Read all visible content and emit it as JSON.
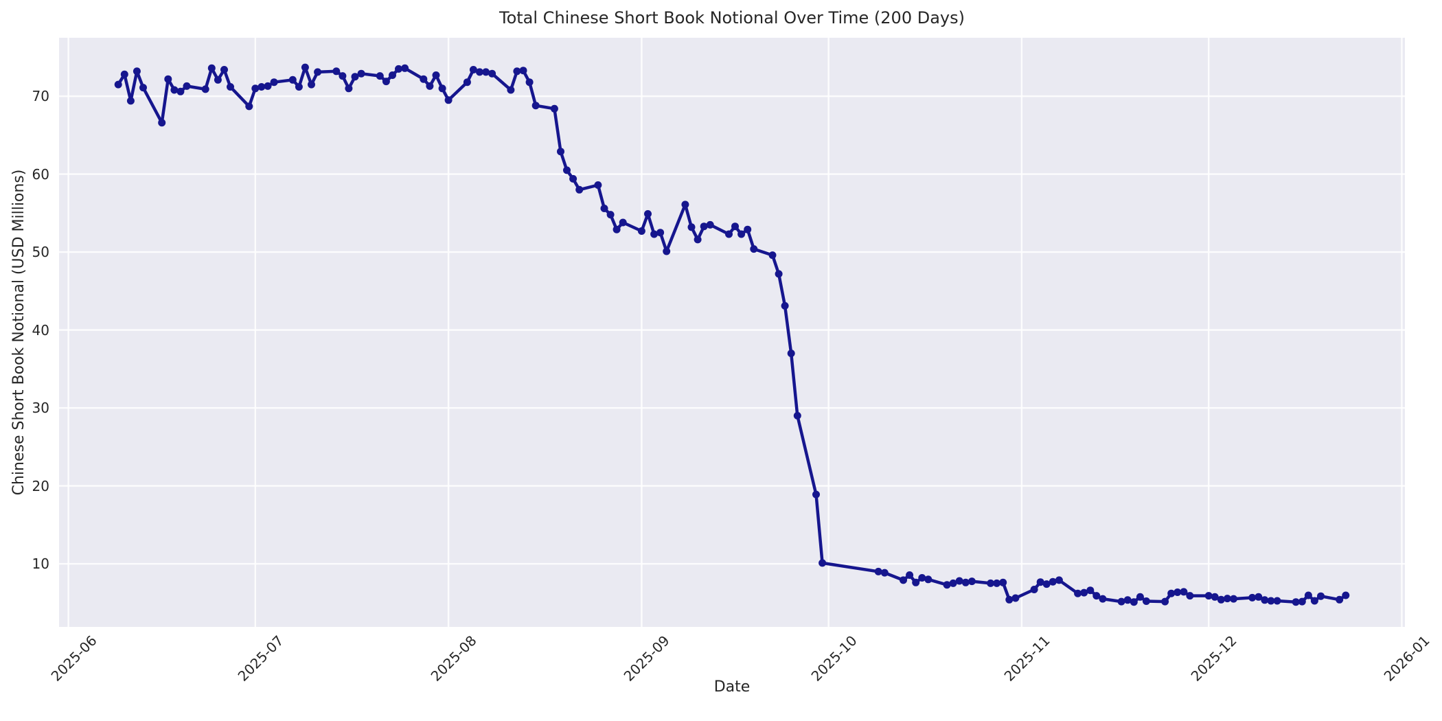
{
  "figure": {
    "background": "#ffffff"
  },
  "chart_data": {
    "type": "line",
    "title": "Total Chinese Short Book Notional Over Time (200 Days)",
    "xlabel": "Date",
    "ylabel": "Chinese Short Book Notional (USD Millions)",
    "grid": true,
    "legend": false,
    "plot_bg": "#eaeaf2",
    "grid_color": "#ffffff",
    "line_color": "#16168e",
    "marker": "circle",
    "xlim": [
      "2025-05-30T12:00:00Z",
      "2026-01-01T12:00:00Z"
    ],
    "ylim": [
      1.9,
      77.5
    ],
    "yticks": [
      10,
      20,
      30,
      40,
      50,
      60,
      70
    ],
    "xticks": [
      {
        "date": "2025-06-01",
        "label": "2025-06"
      },
      {
        "date": "2025-07-01",
        "label": "2025-07"
      },
      {
        "date": "2025-08-01",
        "label": "2025-08"
      },
      {
        "date": "2025-09-01",
        "label": "2025-09"
      },
      {
        "date": "2025-10-01",
        "label": "2025-10"
      },
      {
        "date": "2025-11-01",
        "label": "2025-11"
      },
      {
        "date": "2025-12-01",
        "label": "2025-12"
      },
      {
        "date": "2026-01-01",
        "label": "2026-01"
      }
    ],
    "x": [
      "2025-06-09",
      "2025-06-10",
      "2025-06-11",
      "2025-06-12",
      "2025-06-13",
      "2025-06-16",
      "2025-06-17",
      "2025-06-18",
      "2025-06-19",
      "2025-06-20",
      "2025-06-23",
      "2025-06-24",
      "2025-06-25",
      "2025-06-26",
      "2025-06-27",
      "2025-06-30",
      "2025-07-01",
      "2025-07-02",
      "2025-07-03",
      "2025-07-04",
      "2025-07-07",
      "2025-07-08",
      "2025-07-09",
      "2025-07-10",
      "2025-07-11",
      "2025-07-14",
      "2025-07-15",
      "2025-07-16",
      "2025-07-17",
      "2025-07-18",
      "2025-07-21",
      "2025-07-22",
      "2025-07-23",
      "2025-07-24",
      "2025-07-25",
      "2025-07-28",
      "2025-07-29",
      "2025-07-30",
      "2025-07-31",
      "2025-08-01",
      "2025-08-04",
      "2025-08-05",
      "2025-08-06",
      "2025-08-07",
      "2025-08-08",
      "2025-08-11",
      "2025-08-12",
      "2025-08-13",
      "2025-08-14",
      "2025-08-15",
      "2025-08-18",
      "2025-08-19",
      "2025-08-20",
      "2025-08-21",
      "2025-08-22",
      "2025-08-25",
      "2025-08-26",
      "2025-08-27",
      "2025-08-28",
      "2025-08-29",
      "2025-09-01",
      "2025-09-02",
      "2025-09-03",
      "2025-09-04",
      "2025-09-05",
      "2025-09-08",
      "2025-09-09",
      "2025-09-10",
      "2025-09-11",
      "2025-09-12",
      "2025-09-15",
      "2025-09-16",
      "2025-09-17",
      "2025-09-18",
      "2025-09-19",
      "2025-09-22",
      "2025-09-23",
      "2025-09-24",
      "2025-09-25",
      "2025-09-26",
      "2025-09-29",
      "2025-09-30",
      "2025-10-09",
      "2025-10-10",
      "2025-10-13",
      "2025-10-14",
      "2025-10-15",
      "2025-10-16",
      "2025-10-17",
      "2025-10-20",
      "2025-10-21",
      "2025-10-22",
      "2025-10-23",
      "2025-10-24",
      "2025-10-27",
      "2025-10-28",
      "2025-10-29",
      "2025-10-30",
      "2025-10-31",
      "2025-11-03",
      "2025-11-04",
      "2025-11-05",
      "2025-11-06",
      "2025-11-07",
      "2025-11-10",
      "2025-11-11",
      "2025-11-12",
      "2025-11-13",
      "2025-11-14",
      "2025-11-17",
      "2025-11-18",
      "2025-11-19",
      "2025-11-20",
      "2025-11-21",
      "2025-11-24",
      "2025-11-25",
      "2025-11-26",
      "2025-11-27",
      "2025-11-28",
      "2025-12-01",
      "2025-12-02",
      "2025-12-03",
      "2025-12-04",
      "2025-12-05",
      "2025-12-08",
      "2025-12-09",
      "2025-12-10",
      "2025-12-11",
      "2025-12-12",
      "2025-12-15",
      "2025-12-16",
      "2025-12-17",
      "2025-12-18",
      "2025-12-19",
      "2025-12-22",
      "2025-12-23"
    ],
    "y": [
      71.5,
      72.8,
      69.4,
      73.2,
      71.1,
      66.6,
      72.2,
      70.8,
      70.6,
      71.3,
      70.9,
      73.6,
      72.1,
      73.4,
      71.2,
      68.7,
      71.0,
      71.2,
      71.3,
      71.8,
      72.1,
      71.2,
      73.7,
      71.5,
      73.1,
      73.2,
      72.6,
      71.0,
      72.5,
      72.9,
      72.6,
      71.9,
      72.7,
      73.5,
      73.6,
      72.2,
      71.3,
      72.7,
      71.0,
      69.5,
      71.8,
      73.4,
      73.1,
      73.1,
      72.9,
      70.8,
      73.2,
      73.3,
      71.8,
      68.8,
      68.4,
      62.9,
      60.5,
      59.4,
      58.0,
      58.6,
      55.6,
      54.8,
      52.9,
      53.8,
      52.7,
      54.9,
      52.3,
      52.5,
      50.1,
      56.1,
      53.2,
      51.6,
      53.3,
      53.5,
      52.3,
      53.3,
      52.3,
      52.9,
      50.4,
      49.6,
      47.2,
      43.1,
      37.0,
      29.0,
      18.9,
      10.1,
      9.0,
      8.85,
      7.9,
      8.55,
      7.6,
      8.2,
      8.0,
      7.3,
      7.5,
      7.8,
      7.6,
      7.75,
      7.5,
      7.5,
      7.6,
      5.4,
      5.6,
      6.7,
      7.65,
      7.4,
      7.7,
      7.9,
      6.2,
      6.3,
      6.6,
      5.9,
      5.5,
      5.15,
      5.35,
      5.1,
      5.75,
      5.2,
      5.15,
      6.2,
      6.35,
      6.4,
      5.9,
      5.9,
      5.75,
      5.4,
      5.55,
      5.5,
      5.65,
      5.75,
      5.35,
      5.25,
      5.25,
      5.1,
      5.15,
      5.95,
      5.25,
      5.85,
      5.4,
      5.95
    ]
  }
}
